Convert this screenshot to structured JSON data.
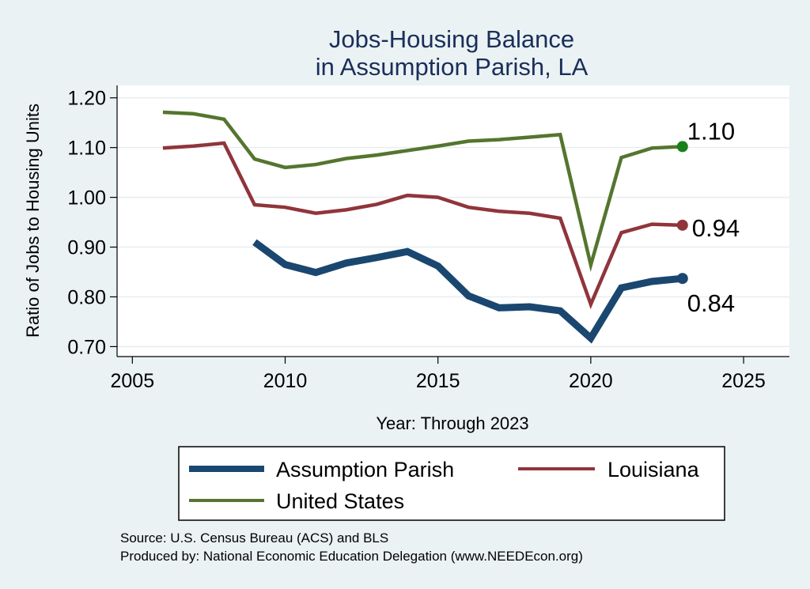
{
  "colors": {
    "background": "#eaf2f3",
    "plot_background": "#ffffff",
    "gridline": "#e7eef0",
    "title": "#1a2e5a",
    "assumption_parish": "#1a476f",
    "louisiana": "#90353b",
    "united_states": "#55752f",
    "us_marker": "#17801a"
  },
  "chart_data": {
    "type": "line",
    "title": [
      "Jobs-Housing Balance",
      "in Assumption Parish, LA"
    ],
    "xlabel": "Year: Through 2023",
    "ylabel": "Ratio of Jobs to Housing Units",
    "xlim": [
      2004.5,
      2026.5
    ],
    "ylim": [
      0.68,
      1.225
    ],
    "xticks": [
      2005,
      2010,
      2015,
      2020,
      2025
    ],
    "yticks": [
      0.7,
      0.8,
      0.9,
      1.0,
      1.1,
      1.2
    ],
    "ytick_labels": [
      "0.70",
      "0.80",
      "0.90",
      "1.00",
      "1.10",
      "1.20"
    ],
    "grid": true,
    "legend_placement": "bottom",
    "series": [
      {
        "name": "Assumption Parish",
        "x": [
          2009,
          2010,
          2011,
          2012,
          2013,
          2014,
          2015,
          2016,
          2017,
          2018,
          2019,
          2020,
          2021,
          2022,
          2023
        ],
        "values": [
          0.91,
          0.865,
          0.849,
          0.868,
          0.879,
          0.891,
          0.862,
          0.802,
          0.778,
          0.78,
          0.772,
          0.717,
          0.818,
          0.831,
          0.837
        ],
        "end_label": "0.84",
        "color_key": "assumption_parish",
        "marker_color_key": "assumption_parish",
        "line_width": "thick"
      },
      {
        "name": "Louisiana",
        "x": [
          2006,
          2007,
          2008,
          2009,
          2010,
          2011,
          2012,
          2013,
          2014,
          2015,
          2016,
          2017,
          2018,
          2019,
          2020,
          2021,
          2022,
          2023
        ],
        "values": [
          1.099,
          1.103,
          1.109,
          0.985,
          0.98,
          0.968,
          0.975,
          0.986,
          1.004,
          1.0,
          0.98,
          0.972,
          0.968,
          0.958,
          0.785,
          0.929,
          0.946,
          0.944
        ],
        "end_label": "0.94",
        "color_key": "louisiana",
        "marker_color_key": "louisiana",
        "line_width": "medium"
      },
      {
        "name": "United States",
        "x": [
          2006,
          2007,
          2008,
          2009,
          2010,
          2011,
          2012,
          2013,
          2014,
          2015,
          2016,
          2017,
          2018,
          2019,
          2020,
          2021,
          2022,
          2023
        ],
        "values": [
          1.171,
          1.168,
          1.157,
          1.077,
          1.06,
          1.066,
          1.078,
          1.085,
          1.094,
          1.103,
          1.113,
          1.116,
          1.121,
          1.126,
          0.864,
          1.08,
          1.099,
          1.102
        ],
        "end_label": "1.10",
        "color_key": "united_states",
        "marker_color_key": "us_marker",
        "line_width": "medium"
      }
    ]
  },
  "legend": {
    "items": [
      "Assumption Parish",
      "Louisiana",
      "United States"
    ]
  },
  "source_lines": [
    "Source: U.S. Census Bureau (ACS) and BLS",
    "Produced by: National Economic Education Delegation (www.NEEDEcon.org)"
  ]
}
